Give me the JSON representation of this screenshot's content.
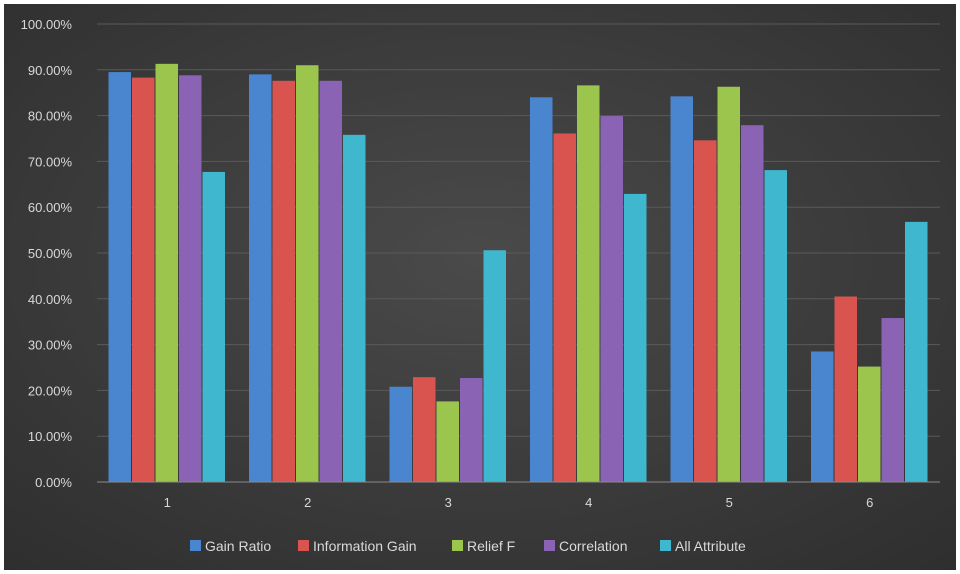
{
  "chart_data": {
    "type": "bar",
    "categories": [
      "1",
      "2",
      "3",
      "4",
      "5",
      "6"
    ],
    "series": [
      {
        "name": "Gain Ratio",
        "color": "#4a86cf",
        "values": [
          89.5,
          89.0,
          20.8,
          84.0,
          84.2,
          28.5
        ]
      },
      {
        "name": "Information Gain",
        "color": "#d9534f",
        "values": [
          88.3,
          87.6,
          22.9,
          76.1,
          74.6,
          40.5
        ]
      },
      {
        "name": "Relief F",
        "color": "#9bc54d",
        "values": [
          91.3,
          91.0,
          17.6,
          86.6,
          86.3,
          25.2
        ]
      },
      {
        "name": "Correlation",
        "color": "#8b63b5",
        "values": [
          88.8,
          87.6,
          22.7,
          79.9,
          77.9,
          35.8
        ]
      },
      {
        "name": "All Attribute",
        "color": "#3fb7cf",
        "values": [
          67.7,
          75.8,
          50.6,
          62.9,
          68.1,
          56.8
        ]
      }
    ],
    "y_ticks": [
      "0.00%",
      "10.00%",
      "20.00%",
      "30.00%",
      "40.00%",
      "50.00%",
      "60.00%",
      "70.00%",
      "80.00%",
      "90.00%",
      "100.00%"
    ],
    "ylim": [
      0,
      100
    ],
    "grid": true,
    "legend_position": "bottom",
    "title": "",
    "xlabel": "",
    "ylabel": ""
  }
}
